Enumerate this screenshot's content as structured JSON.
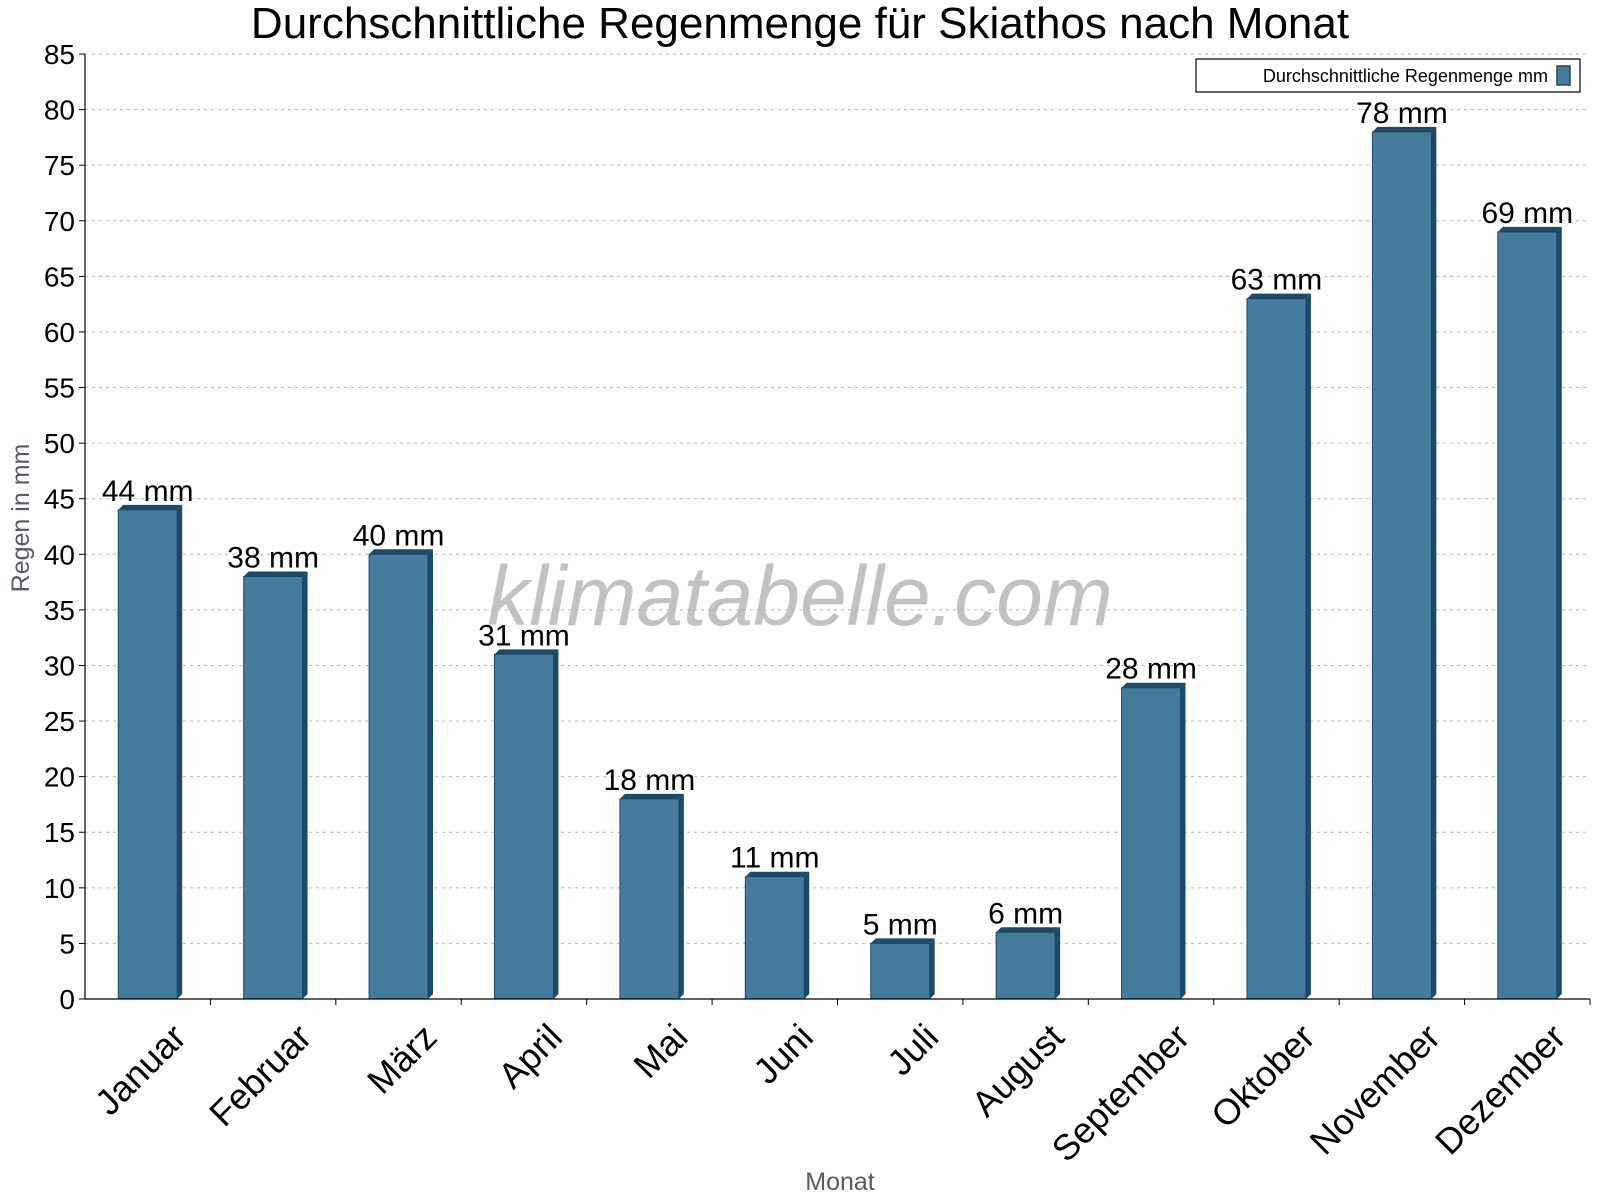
{
  "watermark": "klimatabelle.com",
  "chart_data": {
    "type": "bar",
    "title": "Durchschnittliche Regenmenge für Skiathos nach Monat",
    "xlabel": "Monat",
    "ylabel": "Regen in mm",
    "categories": [
      "Januar",
      "Februar",
      "März",
      "April",
      "Mai",
      "Juni",
      "Juli",
      "August",
      "September",
      "Oktober",
      "November",
      "Dezember"
    ],
    "series": [
      {
        "name": "Durchschnittliche Regenmenge mm",
        "values": [
          44,
          38,
          40,
          31,
          18,
          11,
          5,
          6,
          28,
          63,
          78,
          69
        ],
        "color": "#457b9d",
        "edge_color": "#1b4a6b"
      }
    ],
    "value_labels": [
      "44 mm",
      "38 mm",
      "40 mm",
      "31 mm",
      "18 mm",
      "11 mm",
      "5 mm",
      "6 mm",
      "28 mm",
      "63 mm",
      "78 mm",
      "69 mm"
    ],
    "ylim": [
      0,
      85
    ],
    "yticks": [
      0,
      5,
      10,
      15,
      20,
      25,
      30,
      35,
      40,
      45,
      50,
      55,
      60,
      65,
      70,
      75,
      80,
      85
    ],
    "grid": true,
    "legend_position": "top-right"
  }
}
